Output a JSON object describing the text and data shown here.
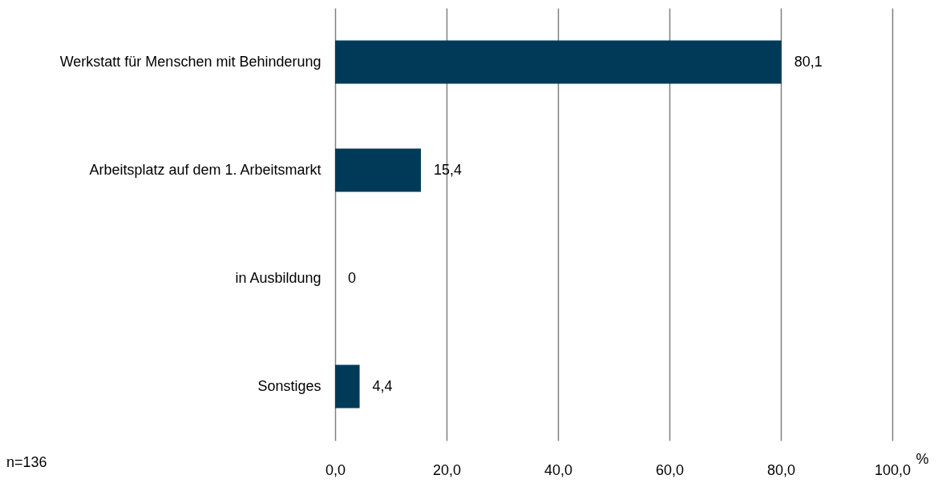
{
  "chart_data": {
    "type": "bar",
    "orientation": "horizontal",
    "categories": [
      "Werkstatt für Menschen mit Behinderung",
      "Arbeitsplatz auf dem 1. Arbeitsmarkt",
      "in Ausbildung",
      "Sonstiges"
    ],
    "values": [
      80.1,
      15.4,
      0,
      4.4
    ],
    "value_labels": [
      "80,1",
      "15,4",
      "0",
      "4,4"
    ],
    "color": "#003a58",
    "xlim": [
      0,
      100
    ],
    "xticks": [
      {
        "value": 0,
        "label": "0,0"
      },
      {
        "value": 20,
        "label": "20,0"
      },
      {
        "value": 40,
        "label": "40,0"
      },
      {
        "value": 60,
        "label": "60,0"
      },
      {
        "value": 80,
        "label": "80,0"
      },
      {
        "value": 100,
        "label": "100,0"
      }
    ],
    "xlabel": "%",
    "grid": "x",
    "annotations": [
      "n=136"
    ]
  }
}
